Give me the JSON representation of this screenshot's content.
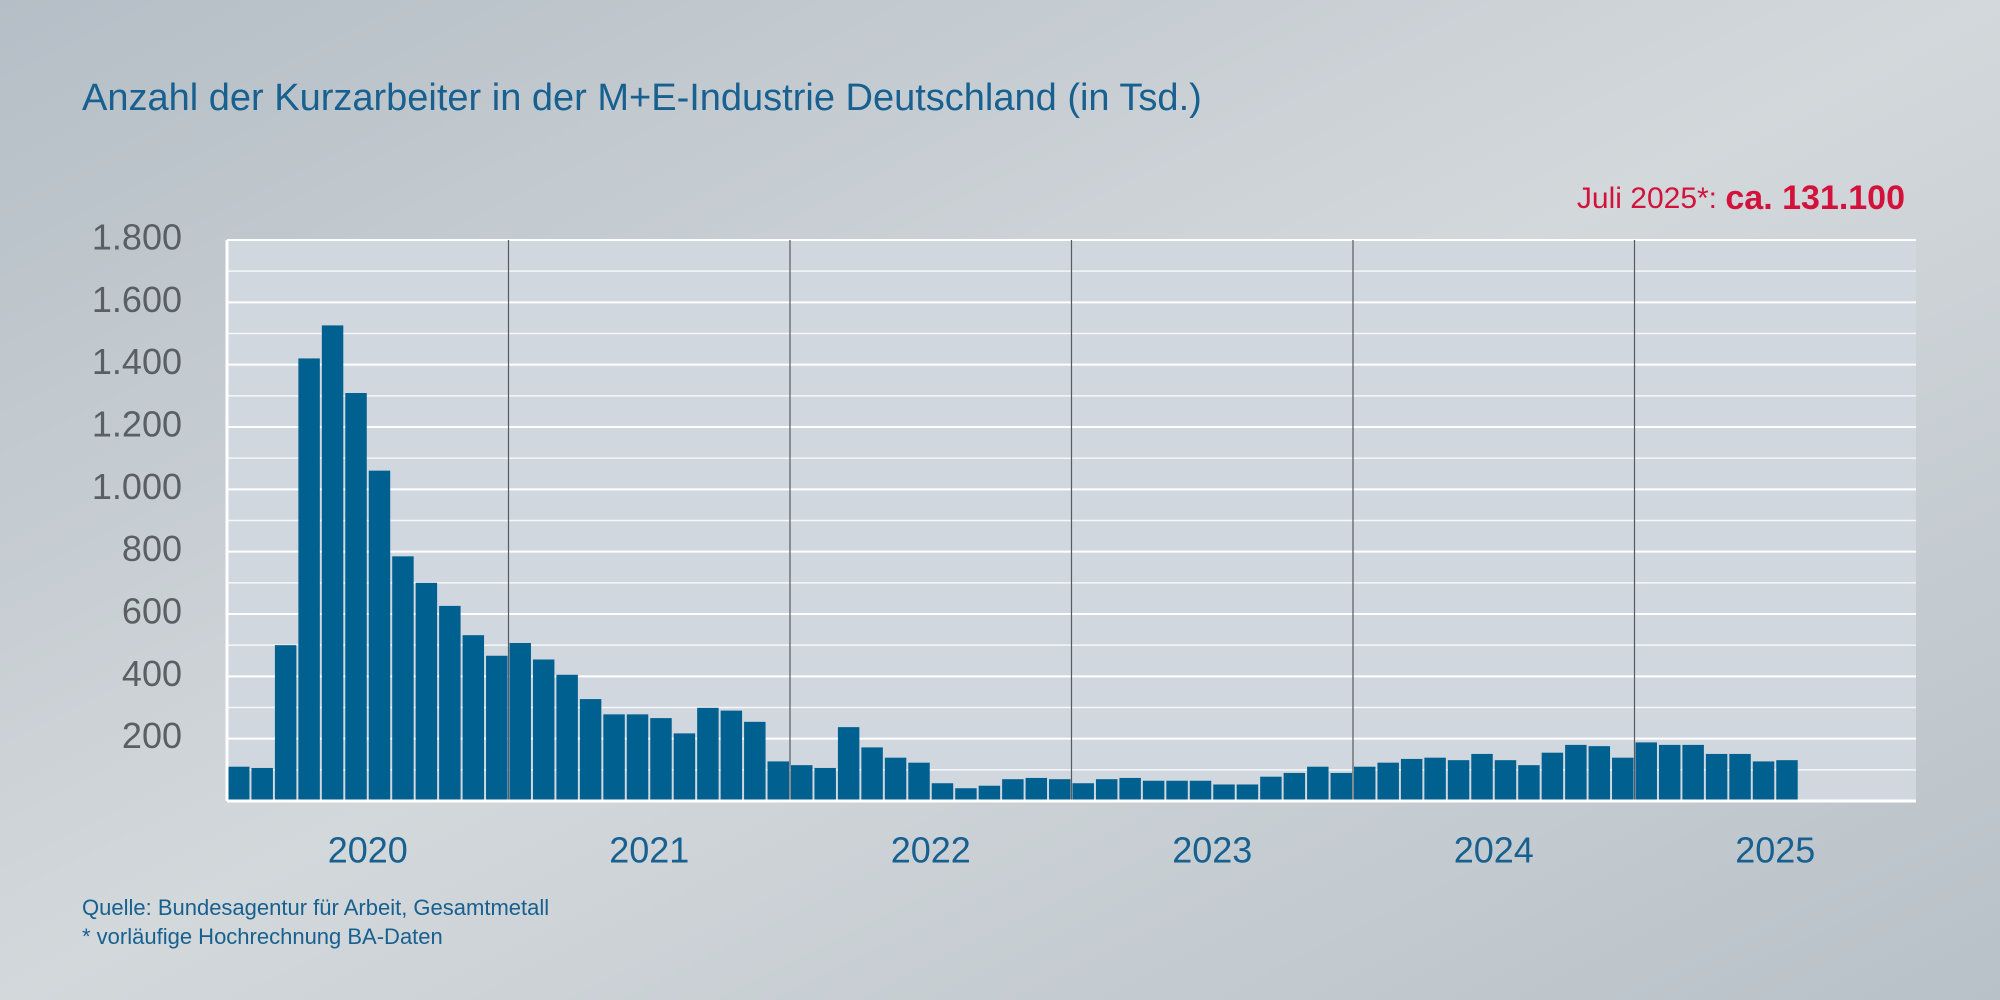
{
  "chart_data": {
    "type": "bar",
    "title": "Anzahl der Kurzarbeiter in der M+E-Industrie Deutschland (in Tsd.)",
    "annotation_prefix": "Juli 2025*:",
    "annotation_value": "ca. 131.100",
    "source": "Quelle: Bundesagentur für Arbeit, Gesamtmetall",
    "footnote": "* vorläufige Hochrechnung BA-Daten",
    "years": [
      "2020",
      "2021",
      "2022",
      "2023",
      "2024",
      "2025"
    ],
    "values": [
      110,
      106,
      500,
      1420,
      1526,
      1309,
      1060,
      785,
      700,
      626,
      532,
      466,
      507,
      454,
      405,
      327,
      278,
      278,
      266,
      217,
      299,
      290,
      254,
      127,
      115,
      106,
      237,
      172,
      139,
      123,
      57,
      41,
      49,
      70,
      74,
      70,
      57,
      70,
      74,
      65,
      65,
      65,
      53,
      53,
      78,
      90,
      110,
      90,
      110,
      123,
      135,
      139,
      131,
      151,
      131,
      115,
      155,
      180,
      176,
      139,
      188,
      180,
      180,
      151,
      151,
      127,
      131
    ],
    "color": "#00608f",
    "ylim": [
      0,
      1800
    ],
    "yticks": [
      200,
      400,
      600,
      800,
      {
        "value": 1000,
        "label": "1.000"
      },
      {
        "value": 1200,
        "label": "1.200"
      },
      {
        "value": 1400,
        "label": "1.400"
      },
      {
        "value": 1600,
        "label": "1.600"
      },
      {
        "value": 1800,
        "label": "1.800"
      }
    ],
    "minor_yticks": [
      100,
      300,
      500,
      700,
      900,
      1100,
      1300,
      1500,
      1700
    ],
    "grid": true
  }
}
